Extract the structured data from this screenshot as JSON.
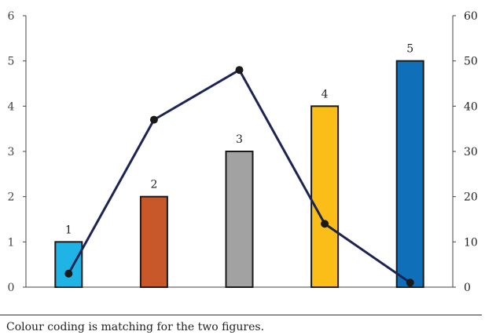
{
  "chart_data": {
    "type": "bar",
    "categories": [
      "1",
      "2",
      "3",
      "4",
      "5"
    ],
    "series": [
      {
        "type": "bar",
        "axis": "left",
        "values": [
          1,
          2,
          3,
          4,
          5
        ],
        "colors": [
          "#1fb3e6",
          "#c8582a",
          "#a2a2a2",
          "#fbbd18",
          "#0f6fb8"
        ],
        "data_labels": [
          "1",
          "2",
          "3",
          "4",
          "5"
        ]
      },
      {
        "type": "line",
        "axis": "right",
        "values": [
          3,
          37,
          48,
          14,
          1
        ],
        "color": "#1c2454"
      }
    ],
    "ylim_left": [
      0,
      6
    ],
    "yticks_left": [
      "0",
      "1",
      "2",
      "3",
      "4",
      "5",
      "6"
    ],
    "ylim_right": [
      0,
      60
    ],
    "yticks_right": [
      "0",
      "10",
      "20",
      "30",
      "40",
      "50",
      "60"
    ],
    "title": "",
    "xlabel": "",
    "ylabel": "",
    "grid": false,
    "legend": "none"
  },
  "caption": "Colour coding is matching for the two figures."
}
